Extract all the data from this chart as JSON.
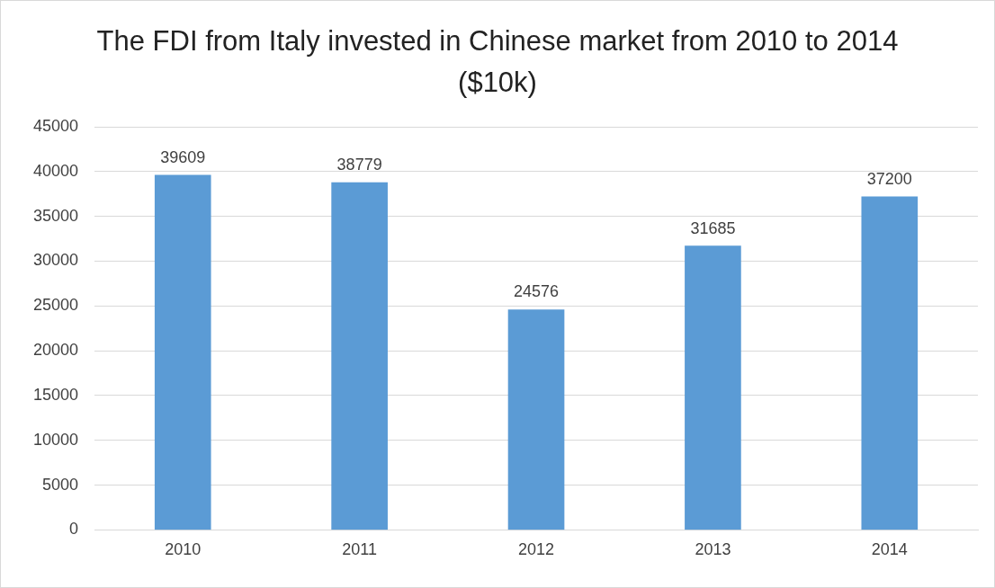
{
  "chart_data": {
    "type": "bar",
    "title": "The FDI from Italy invested in Chinese market from 2010 to 2014 ($10k)",
    "categories": [
      "2010",
      "2011",
      "2012",
      "2013",
      "2014"
    ],
    "values": [
      39609,
      38779,
      24576,
      31685,
      37200
    ],
    "color": "#5b9bd5",
    "ylim": [
      0,
      45000
    ],
    "yticks": [
      0,
      5000,
      10000,
      15000,
      20000,
      25000,
      30000,
      35000,
      40000,
      45000
    ],
    "grid": "y",
    "data_labels": true
  }
}
